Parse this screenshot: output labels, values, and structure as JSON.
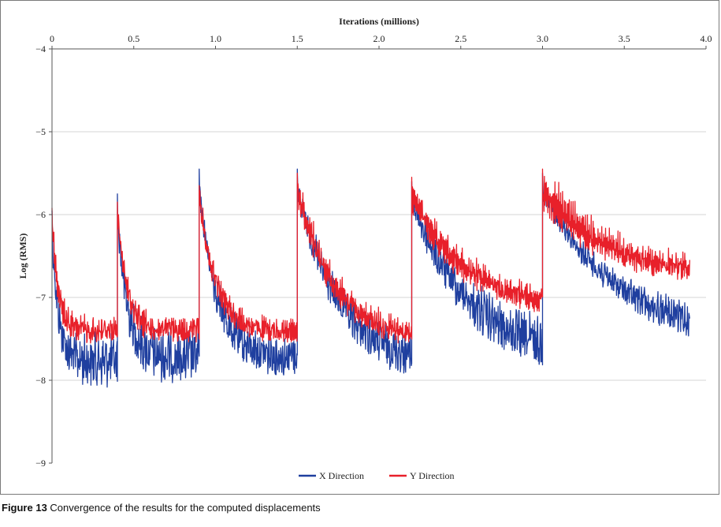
{
  "caption": {
    "number": "Figure 13",
    "text": "Convergence of the results for the computed displacements"
  },
  "chart_data": {
    "type": "line",
    "xlabel": "Iterations (millions)",
    "ylabel": "Log (RMS)",
    "xlim": [
      0,
      4.0
    ],
    "ylim": [
      -9,
      -4
    ],
    "x_ticks": [
      0,
      0.5,
      1.0,
      1.5,
      2.0,
      2.5,
      3.0,
      3.5,
      4.0
    ],
    "x_tick_labels": [
      "0",
      "0.5",
      "1.0",
      "1.5",
      "2.0",
      "2.5",
      "3.0",
      "3.5",
      "4.0"
    ],
    "y_ticks": [
      -4,
      -5,
      -6,
      -7,
      -8,
      -9
    ],
    "y_tick_labels": [
      "−4",
      "−5",
      "−6",
      "−7",
      "−8",
      "−9"
    ],
    "x_axis_position": "top",
    "grid": "horizontal",
    "legend_position": "bottom-center",
    "segments": [
      {
        "start": 0.0,
        "end": 0.4,
        "x_peak": -5.95,
        "y_peak": -5.92,
        "x_floor": -7.4,
        "y_floor": -7.3,
        "x_noise": 0.55,
        "y_noise": 0.35,
        "y_osc": 0.25,
        "decay": 0.1
      },
      {
        "start": 0.4,
        "end": 0.9,
        "x_peak": -5.75,
        "y_peak": -5.85,
        "x_floor": -7.35,
        "y_floor": -7.3,
        "x_noise": 0.55,
        "y_noise": 0.35,
        "y_osc": 0.25,
        "decay": 0.12
      },
      {
        "start": 0.9,
        "end": 1.5,
        "x_peak": -5.45,
        "y_peak": -5.65,
        "x_floor": -7.4,
        "y_floor": -7.35,
        "x_noise": 0.45,
        "y_noise": 0.3,
        "y_osc": 0.25,
        "decay": 0.18
      },
      {
        "start": 1.5,
        "end": 2.2,
        "x_peak": -5.45,
        "y_peak": -5.5,
        "x_floor": -7.5,
        "y_floor": -7.45,
        "x_noise": 0.45,
        "y_noise": 0.3,
        "y_osc": 0.45,
        "decay": 0.35
      },
      {
        "start": 2.2,
        "end": 3.0,
        "x_peak": -5.6,
        "y_peak": -5.55,
        "x_floor": -7.4,
        "y_floor": -7.1,
        "x_noise": 0.55,
        "y_noise": 0.3,
        "y_osc": 0.5,
        "decay": 0.45
      },
      {
        "start": 3.0,
        "end": 3.9,
        "x_peak": -5.5,
        "y_peak": -5.45,
        "x_floor": -7.25,
        "y_floor": -6.7,
        "x_noise": 0.35,
        "y_noise": 0.25,
        "y_osc": 0.7,
        "decay": 0.5
      }
    ],
    "series": [
      {
        "name": "X Direction",
        "color": "#1f3f9f",
        "key": "x"
      },
      {
        "name": "Y Direction",
        "color": "#e8202a",
        "key": "y"
      }
    ]
  }
}
